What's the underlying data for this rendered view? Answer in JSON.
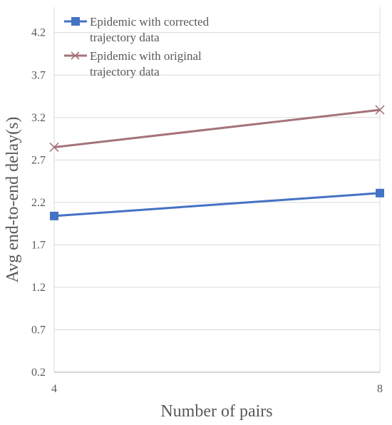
{
  "chart_data": {
    "type": "line",
    "title": "",
    "xlabel": "Number of pairs",
    "ylabel": "Avg end-to-end delay(s)",
    "x": [
      4,
      8
    ],
    "x_tick_labels": [
      "4",
      "8"
    ],
    "xlim": [
      4,
      8
    ],
    "ylim": [
      0.2,
      4.5
    ],
    "y_ticks": [
      0.2,
      0.7,
      1.2,
      1.7,
      2.2,
      2.7,
      3.2,
      3.7,
      4.2
    ],
    "y_tick_labels": [
      "0.2",
      "0.7",
      "1.2",
      "1.7",
      "2.2",
      "2.7",
      "3.2",
      "3.7",
      "4.2"
    ],
    "grid": true,
    "legend_position": "top-left",
    "series": [
      {
        "name": "Epidemic with corrected trajectory data",
        "legend_lines": [
          "Epidemic with corrected",
          "trajectory data"
        ],
        "values": [
          2.04,
          2.31
        ],
        "color": "#4472C4",
        "marker": "square"
      },
      {
        "name": "Epidemic with original trajectory data",
        "legend_lines": [
          "Epidemic with original",
          "trajectory data"
        ],
        "values": [
          2.85,
          3.29
        ],
        "color": "#A5737A",
        "marker": "x"
      }
    ]
  }
}
